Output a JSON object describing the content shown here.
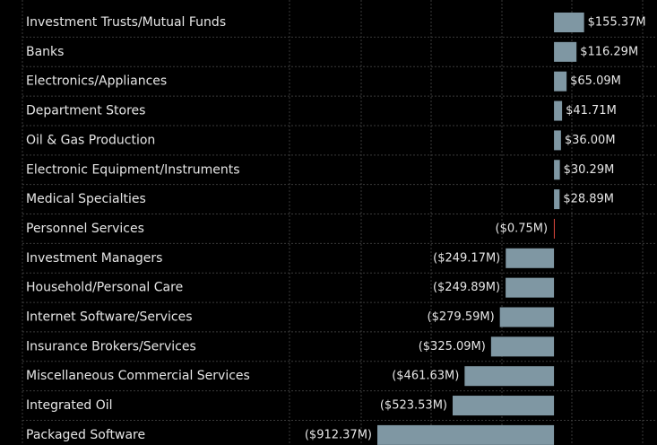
{
  "chart_data": {
    "type": "barh",
    "categories": [
      "Investment Trusts/Mutual Funds",
      "Banks",
      "Electronics/Appliances",
      "Department Stores",
      "Oil & Gas Production",
      "Electronic Equipment/Instruments",
      "Medical Specialties",
      "Personnel Services",
      "Investment Managers",
      "Household/Personal Care",
      "Internet Software/Services",
      "Insurance Brokers/Services",
      "Miscellaneous Commercial Services",
      "Integrated Oil",
      "Packaged Software"
    ],
    "values": [
      155.37,
      116.29,
      65.09,
      41.71,
      36.0,
      30.29,
      28.89,
      -0.75,
      -249.17,
      -249.89,
      -279.59,
      -325.09,
      -461.63,
      -523.53,
      -912.37
    ],
    "value_labels": [
      "$155.37M",
      "$116.29M",
      "$65.09M",
      "$41.71M",
      "$36.00M",
      "$30.29M",
      "$28.89M",
      "($0.75M)",
      "($249.17M)",
      "($249.89M)",
      "($279.59M)",
      "($325.09M)",
      "($461.63M)",
      "($523.53M)",
      "($912.37M)"
    ],
    "colors": [
      "#7f97a3",
      "#7f97a3",
      "#7f97a3",
      "#7f97a3",
      "#7f97a3",
      "#7f97a3",
      "#7f97a3",
      "#e0483e",
      "#7f97a3",
      "#7f97a3",
      "#7f97a3",
      "#7f97a3",
      "#7f97a3",
      "#7f97a3",
      "#7f97a3"
    ],
    "xlim": [
      -1366,
      532
    ]
  }
}
